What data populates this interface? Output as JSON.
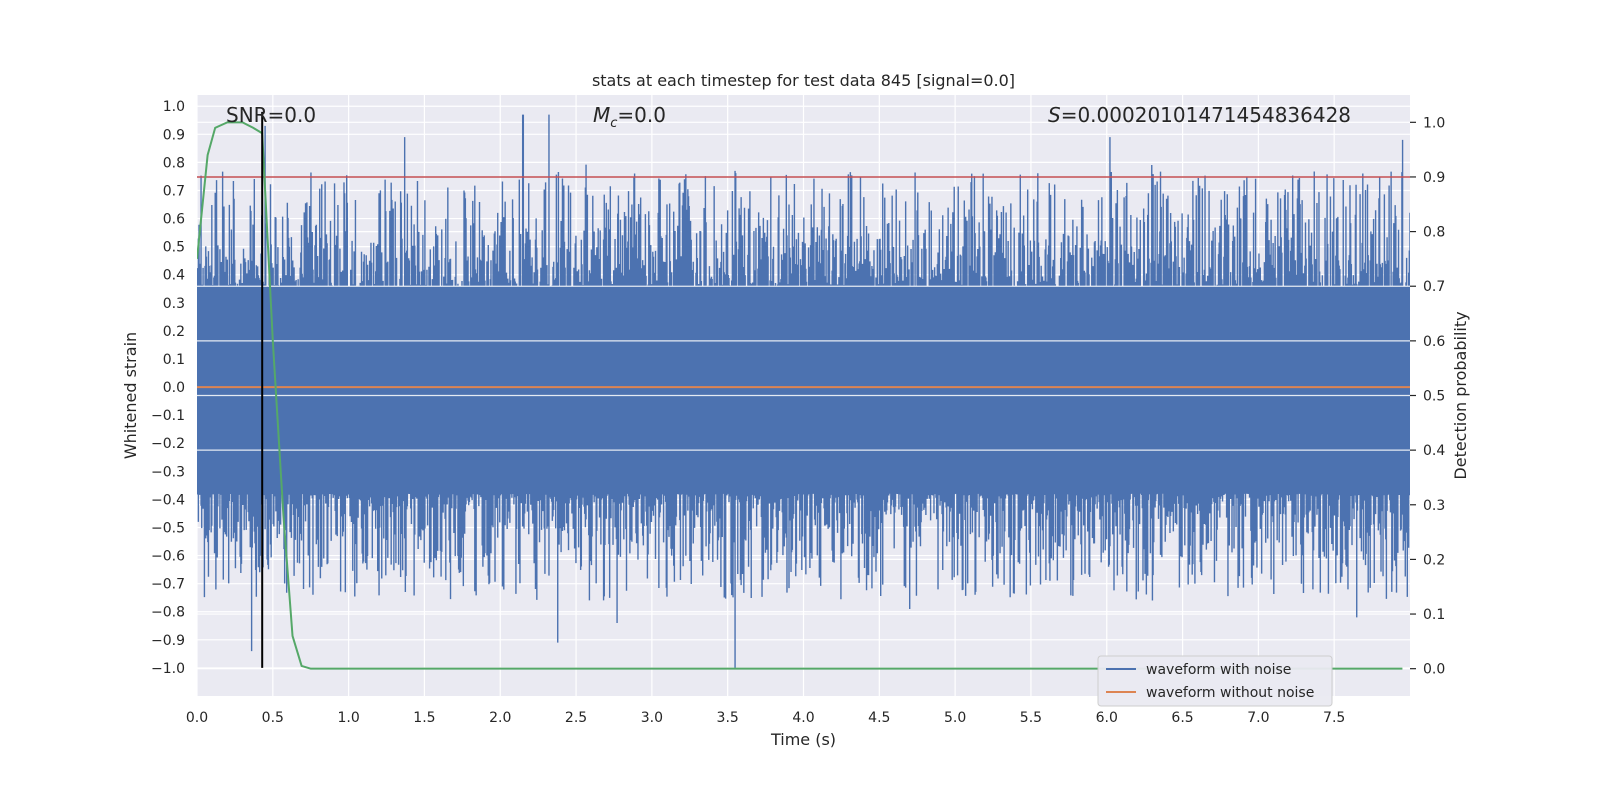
{
  "chart_data": {
    "type": "line",
    "title": "stats at each timestep for test data 845 [signal=0.0]",
    "xlabel": "Time (s)",
    "ylabel_left": "Whitened strain",
    "ylabel_right": "Detection probability",
    "xlim": [
      0.0,
      8.0
    ],
    "ylim_left": [
      -1.1,
      1.04
    ],
    "ylim_right": [
      -0.05,
      1.05
    ],
    "x_ticks": [
      "0.0",
      "0.5",
      "1.0",
      "1.5",
      "2.0",
      "2.5",
      "3.0",
      "3.5",
      "4.0",
      "4.5",
      "5.0",
      "5.5",
      "6.0",
      "6.5",
      "7.0",
      "7.5"
    ],
    "y_ticks_left": [
      "1.0",
      "0.9",
      "0.8",
      "0.7",
      "0.6",
      "0.5",
      "0.4",
      "0.3",
      "0.2",
      "0.1",
      "0.0",
      "-0.1",
      "-0.2",
      "-0.3",
      "-0.4",
      "-0.5",
      "-0.6",
      "-0.7",
      "-0.8",
      "-0.9",
      "-1.0"
    ],
    "y_ticks_right": [
      "1.0",
      "0.9",
      "0.8",
      "0.7",
      "0.6",
      "0.5",
      "0.4",
      "0.3",
      "0.2",
      "0.1",
      "0.0"
    ],
    "annotations": {
      "snr": "SNR=0.0",
      "mc_symbol": "M",
      "mc_sub": "c",
      "mc_value": "=0.0",
      "s_symbol": "S",
      "s_value": "=0.00020101471454836428"
    },
    "series": [
      {
        "name": "waveform with noise",
        "color": "#4c72b0",
        "axis": "left",
        "envelope_peaks_upper": [
          {
            "x": 0.45,
            "y": 0.93
          },
          {
            "x": 1.37,
            "y": 0.89
          },
          {
            "x": 2.15,
            "y": 0.97
          },
          {
            "x": 2.32,
            "y": 0.97
          },
          {
            "x": 3.55,
            "y": 0.77
          },
          {
            "x": 6.02,
            "y": 0.89
          },
          {
            "x": 7.95,
            "y": 0.88
          }
        ],
        "envelope_peaks_lower": [
          {
            "x": 0.36,
            "y": -0.94
          },
          {
            "x": 2.38,
            "y": -0.91
          },
          {
            "x": 2.77,
            "y": -0.84
          },
          {
            "x": 3.55,
            "y": -1.0
          },
          {
            "x": 4.7,
            "y": -0.79
          },
          {
            "x": 7.65,
            "y": -0.82
          }
        ]
      },
      {
        "name": "waveform without noise",
        "color": "#dd8452",
        "axis": "left",
        "x": [
          0.0,
          8.0
        ],
        "y": [
          0.0,
          0.0
        ]
      },
      {
        "name": "detection probability",
        "color": "#55a868",
        "axis": "right",
        "x": [
          0.0,
          0.07,
          0.12,
          0.2,
          0.3,
          0.37,
          0.43,
          0.5,
          0.57,
          0.63,
          0.69,
          0.75,
          1.0,
          2.0,
          4.0,
          6.0,
          8.0
        ],
        "y": [
          0.75,
          0.94,
          0.99,
          1.0,
          1.0,
          0.99,
          0.98,
          0.6,
          0.28,
          0.06,
          0.005,
          0.0,
          0.0,
          0.0,
          0.0,
          0.0,
          0.0
        ]
      },
      {
        "name": "threshold",
        "color": "#c44e52",
        "axis": "right",
        "y_const": 0.9
      },
      {
        "name": "current time marker",
        "color": "#000000",
        "axis": "left",
        "x_const": 0.43,
        "y_range": [
          -1.0,
          0.98
        ]
      }
    ],
    "legend": {
      "placement": "lower-right",
      "entries": [
        "waveform with noise",
        "waveform without noise"
      ]
    },
    "grid": true,
    "background": "#eaeaf2"
  }
}
